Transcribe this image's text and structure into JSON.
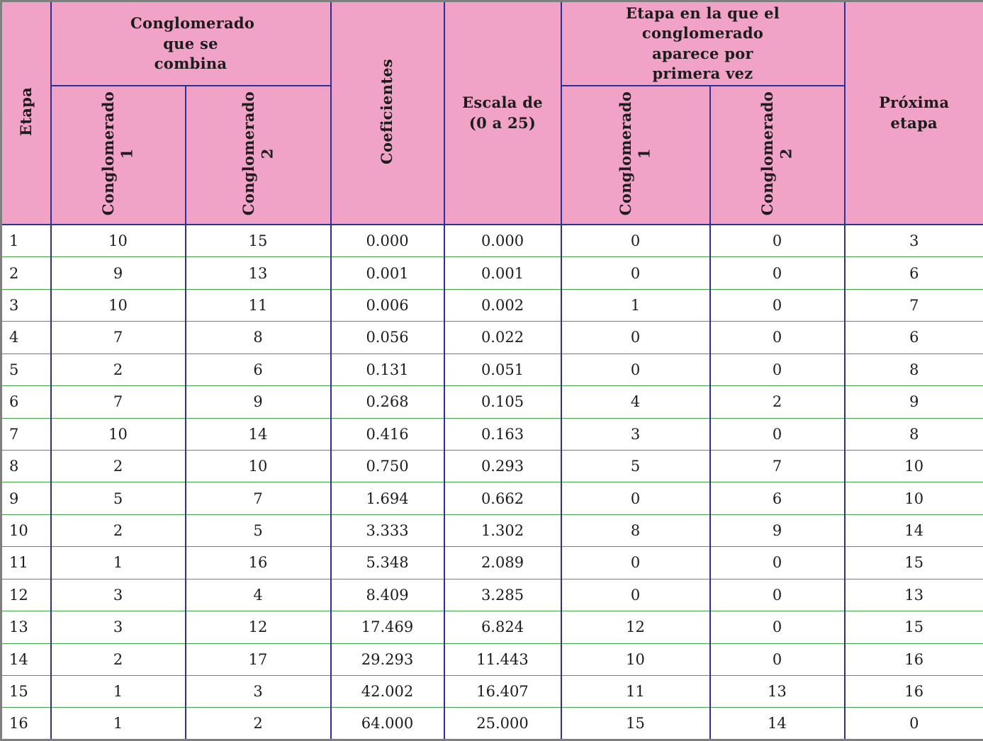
{
  "colors": {
    "header_bg": "#f0a3c7",
    "column_line": "#2e3192",
    "row_line": "#43a047",
    "outer_border": "#7f7f7f",
    "text": "#1c1c1c"
  },
  "header": {
    "etapa": "Etapa",
    "combine_group": "Conglomerado que se combina",
    "conglomerado_1": {
      "word": "Conglomerado",
      "num": "1"
    },
    "conglomerado_2": {
      "word": "Conglomerado",
      "num": "2"
    },
    "coeficientes": "Coeficientes",
    "escala": {
      "line1": "Escala de",
      "line2": "(0 a 25)"
    },
    "first_appear_group": "Etapa en la que el conglomerado aparece por primera vez",
    "proxima": {
      "line1": "Próxima",
      "line2": "etapa"
    }
  },
  "chart_data": {
    "type": "table",
    "title": "",
    "columns": [
      "Etapa",
      "Conglomerado que se combina — Conglomerado 1",
      "Conglomerado que se combina — Conglomerado 2",
      "Coeficientes",
      "Escala de (0 a 25)",
      "Etapa en la que el conglomerado aparece por primera vez — Conglomerado 1",
      "Etapa en la que el conglomerado aparece por primera vez — Conglomerado 2",
      "Próxima etapa"
    ],
    "rows": [
      [
        "1",
        "10",
        "15",
        "0.000",
        "0.000",
        "0",
        "0",
        "3"
      ],
      [
        "2",
        "9",
        "13",
        "0.001",
        "0.001",
        "0",
        "0",
        "6"
      ],
      [
        "3",
        "10",
        "11",
        "0.006",
        "0.002",
        "1",
        "0",
        "7"
      ],
      [
        "4",
        "7",
        "8",
        "0.056",
        "0.022",
        "0",
        "0",
        "6"
      ],
      [
        "5",
        "2",
        "6",
        "0.131",
        "0.051",
        "0",
        "0",
        "8"
      ],
      [
        "6",
        "7",
        "9",
        "0.268",
        "0.105",
        "4",
        "2",
        "9"
      ],
      [
        "7",
        "10",
        "14",
        "0.416",
        "0.163",
        "3",
        "0",
        "8"
      ],
      [
        "8",
        "2",
        "10",
        "0.750",
        "0.293",
        "5",
        "7",
        "10"
      ],
      [
        "9",
        "5",
        "7",
        "1.694",
        "0.662",
        "0",
        "6",
        "10"
      ],
      [
        "10",
        "2",
        "5",
        "3.333",
        "1.302",
        "8",
        "9",
        "14"
      ],
      [
        "11",
        "1",
        "16",
        "5.348",
        "2.089",
        "0",
        "0",
        "15"
      ],
      [
        "12",
        "3",
        "4",
        "8.409",
        "3.285",
        "0",
        "0",
        "13"
      ],
      [
        "13",
        "3",
        "12",
        "17.469",
        "6.824",
        "12",
        "0",
        "15"
      ],
      [
        "14",
        "2",
        "17",
        "29.293",
        "11.443",
        "10",
        "0",
        "16"
      ],
      [
        "15",
        "1",
        "3",
        "42.002",
        "16.407",
        "11",
        "13",
        "16"
      ],
      [
        "16",
        "1",
        "2",
        "64.000",
        "25.000",
        "15",
        "14",
        "0"
      ]
    ]
  }
}
